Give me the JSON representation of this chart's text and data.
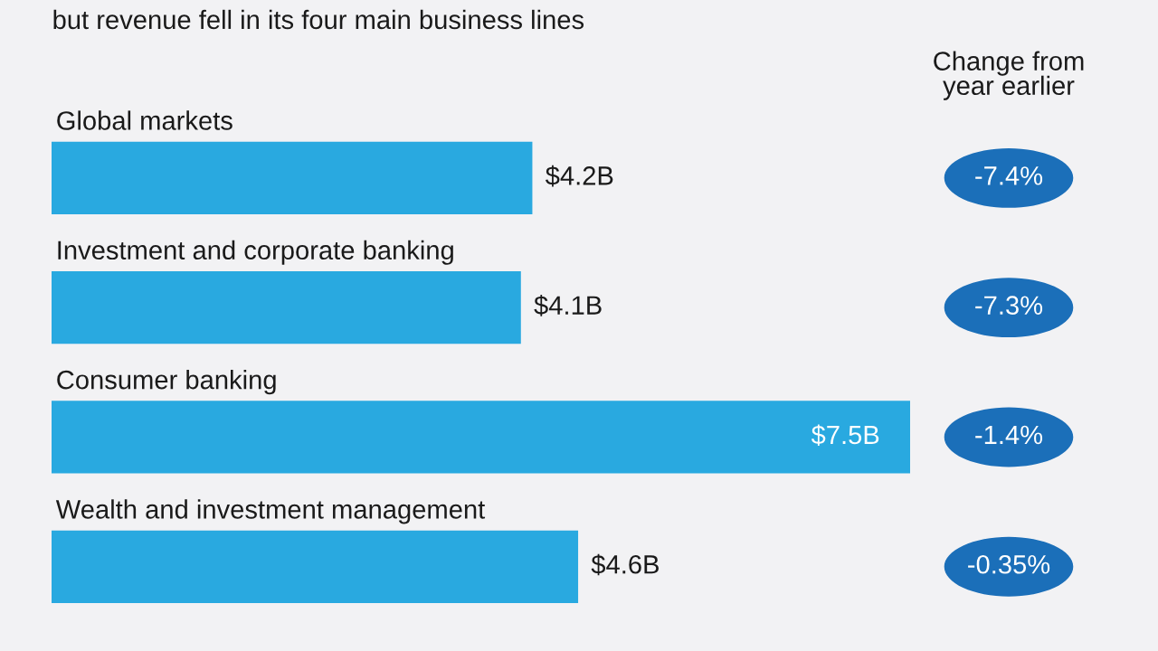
{
  "chart_data": [
    {
      "type": "bar",
      "orientation": "horizontal",
      "title": "but revenue fell in its four main business lines",
      "categories": [
        "Global markets",
        "Investment and corporate banking",
        "Consumer banking",
        "Wealth and investment management"
      ],
      "values": [
        4.2,
        4.1,
        7.5,
        4.6
      ],
      "value_labels": [
        "$4.2B",
        "$4.1B",
        "$7.5B",
        "$4.6B"
      ],
      "color": "#29a9e0"
    },
    {
      "type": "other",
      "title": "Change from\nyear earlier",
      "color": "#1b6fb9",
      "annotations": [
        "-7.4%",
        "-7.3%",
        "-1.4%",
        "-0.35%"
      ]
    }
  ]
}
